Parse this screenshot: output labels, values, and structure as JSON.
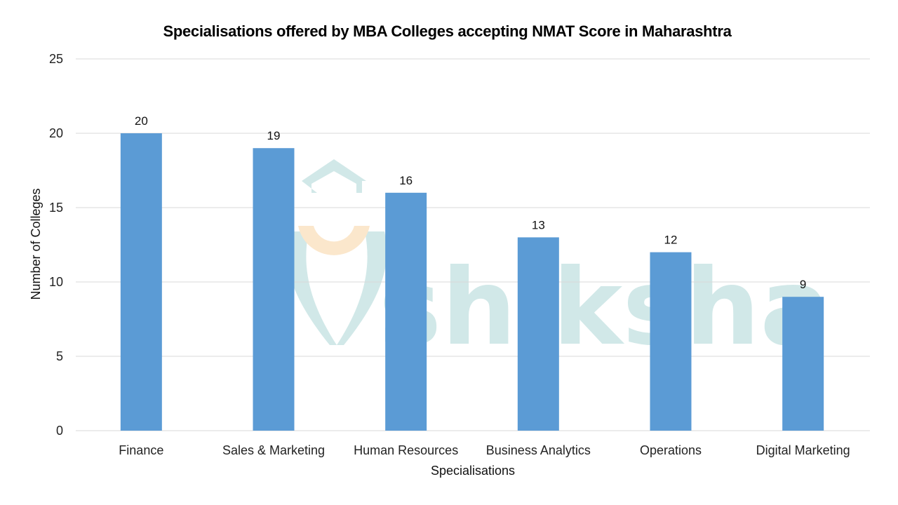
{
  "chart_data": {
    "type": "bar",
    "title": "Specialisations offered by MBA Colleges accepting NMAT Score in Maharashtra",
    "xlabel": "Specialisations",
    "ylabel": "Number of Colleges",
    "categories": [
      "Finance",
      "Sales & Marketing",
      "Human Resources",
      "Business Analytics",
      "Operations",
      "Digital Marketing"
    ],
    "values": [
      20,
      19,
      16,
      13,
      12,
      9
    ],
    "ylim": [
      0,
      25
    ],
    "yticks": [
      0,
      5,
      10,
      15,
      20,
      25
    ],
    "grid": true,
    "legend": "none",
    "bar_color": "#5b9bd5"
  },
  "watermark": {
    "text": "shiksha",
    "color": "#c9e4e4",
    "accent": "#fbe3c4"
  }
}
